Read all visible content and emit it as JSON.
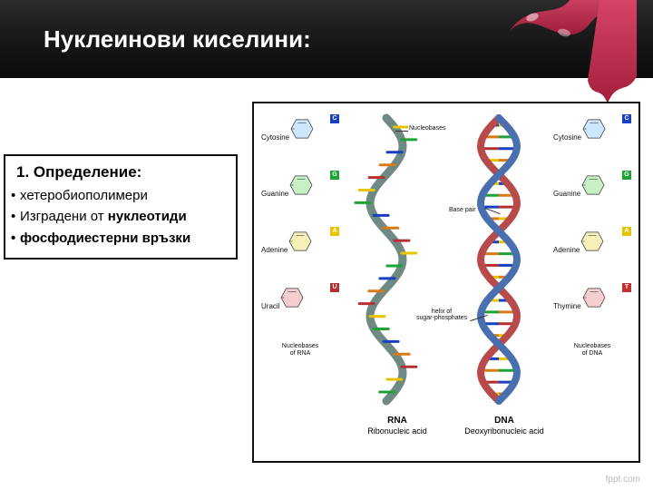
{
  "header": {
    "title": "Нуклеинови киселини:",
    "ribbon_color": "#c72f4e"
  },
  "definition": {
    "heading": "1. Определение:",
    "bullets": [
      {
        "text": "хетеробиополимери",
        "bold": false
      },
      {
        "prefix": "Изградени от ",
        "bold_part": "нуклеотиди"
      },
      {
        "text": "фосфодиестерни връзки",
        "bold": true
      }
    ]
  },
  "diagram": {
    "left_bases": [
      {
        "name": "Cytosine",
        "letter": "C",
        "tag_color": "#1a3fbf",
        "fill": "#cfe6ff"
      },
      {
        "name": "Guanine",
        "letter": "G",
        "tag_color": "#1fa336",
        "fill": "#c7f0c7"
      },
      {
        "name": "Adenine",
        "letter": "A",
        "tag_color": "#e8c400",
        "fill": "#f7f0b8"
      },
      {
        "name": "Uracil",
        "letter": "U",
        "tag_color": "#b53030",
        "fill": "#f5cfcf"
      }
    ],
    "right_bases": [
      {
        "name": "Cytosine",
        "letter": "C",
        "tag_color": "#1a3fbf",
        "fill": "#cfe6ff"
      },
      {
        "name": "Guanine",
        "letter": "G",
        "tag_color": "#1fa336",
        "fill": "#c7f0c7"
      },
      {
        "name": "Adenine",
        "letter": "A",
        "tag_color": "#e8c400",
        "fill": "#f7f0b8"
      },
      {
        "name": "Thymine",
        "letter": "T",
        "tag_color": "#c23030",
        "fill": "#f5cfcf"
      }
    ],
    "left_footer": "Nucleobases\nof RNA",
    "right_footer": "Nucleobases\nof DNA",
    "rna_label_main": "RNA",
    "rna_label_sub": "Ribonucleic acid",
    "dna_label_main": "DNA",
    "dna_label_sub": "Deoxyribonucleic acid",
    "annot_nucleobases": "Nucleobases",
    "annot_basepair": "Base pair",
    "annot_helix": "helix of\nsugar-phosphates",
    "rna_backbone_color": "#6f8a84",
    "dna_backbone_colors": [
      "#4a6fae",
      "#b74a4a"
    ],
    "rung_colors": [
      "#e8c400",
      "#1fa336",
      "#1a3fbf",
      "#d77a18",
      "#b53030"
    ]
  },
  "footer": {
    "brand": "fppt.com"
  }
}
